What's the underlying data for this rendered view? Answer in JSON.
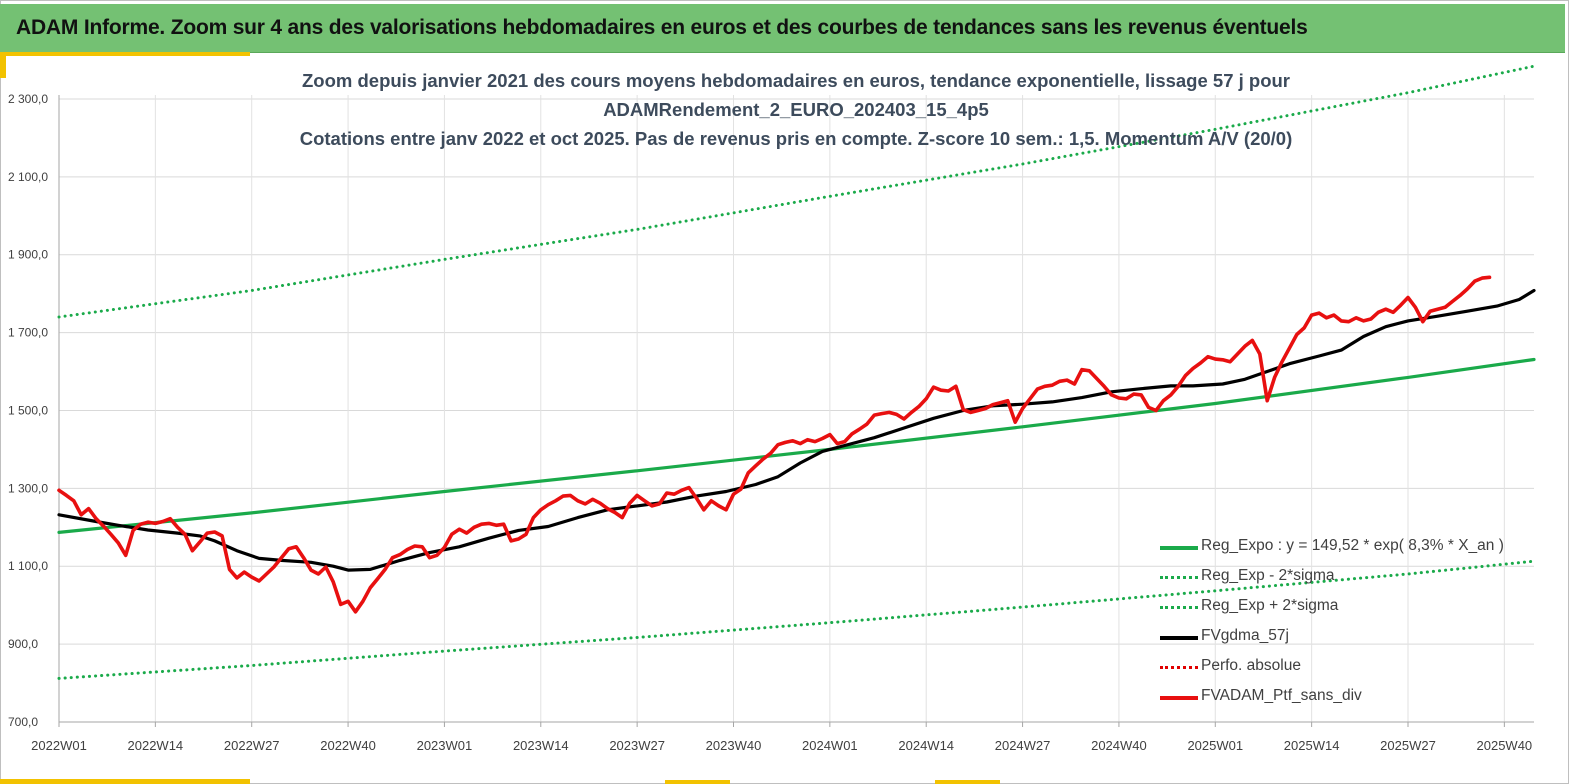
{
  "banner": {
    "title": "ADAM Informe. Zoom sur 4 ans des valorisations hebdomadaires en euros et des courbes de tendances sans les revenus éventuels"
  },
  "chart_data": {
    "type": "line",
    "title_lines": [
      "Zoom depuis janvier 2021 des cours moyens hebdomadaires  en euros, tendance exponentielle, lissage 57 j pour",
      "ADAMRendement_2_EURO_202403_15_4p5",
      "Cotations  entre janv 2022 et oct 2025. Pas de revenus pris en compte. Z-score 10 sem.: 1,5. Momentum A/V (20/0)"
    ],
    "ylim": [
      700,
      2400
    ],
    "yticks": [
      700,
      900,
      1100,
      1300,
      1500,
      1700,
      1900,
      2100,
      2300
    ],
    "ytick_labels": [
      "700,0",
      "900,0",
      "1 100,0",
      "1 300,0",
      "1 500,0",
      "1 700,0",
      "1 900,0",
      "2 100,0",
      "2 300,0"
    ],
    "x_count": 200,
    "xtick_labels": [
      "2022W01",
      "2022W14",
      "2022W27",
      "2022W40",
      "2023W01",
      "2023W14",
      "2023W27",
      "2023W40",
      "2024W01",
      "2024W14",
      "2024W27",
      "2024W40",
      "2025W01",
      "2025W14",
      "2025W27",
      "2025W40"
    ],
    "xtick_index": [
      0,
      13,
      26,
      39,
      52,
      65,
      78,
      91,
      104,
      117,
      130,
      143,
      156,
      169,
      182,
      195
    ],
    "series": [
      {
        "name": "Reg_Expo : y = 149,52 * exp( 8,3% *  X_an )",
        "color": "#1aaa4a",
        "style": "solid",
        "points": [
          [
            0,
            1187
          ],
          [
            26,
            1237
          ],
          [
            52,
            1292
          ],
          [
            78,
            1345
          ],
          [
            104,
            1400
          ],
          [
            130,
            1458
          ],
          [
            156,
            1518
          ],
          [
            182,
            1585
          ],
          [
            199,
            1631
          ]
        ]
      },
      {
        "name": "Reg_Exp - 2*sigma",
        "color": "#1aaa4a",
        "style": "dotted",
        "points": [
          [
            0,
            812
          ],
          [
            26,
            845
          ],
          [
            52,
            882
          ],
          [
            78,
            917
          ],
          [
            104,
            955
          ],
          [
            130,
            995
          ],
          [
            156,
            1037
          ],
          [
            182,
            1080
          ],
          [
            199,
            1113
          ]
        ]
      },
      {
        "name": "Reg_Exp + 2*sigma",
        "color": "#1aaa4a",
        "style": "dotted",
        "points": [
          [
            0,
            1740
          ],
          [
            26,
            1808
          ],
          [
            52,
            1888
          ],
          [
            78,
            1965
          ],
          [
            104,
            2050
          ],
          [
            130,
            2133
          ],
          [
            156,
            2222
          ],
          [
            182,
            2316
          ],
          [
            199,
            2384
          ]
        ]
      },
      {
        "name": "FVgdma_57j",
        "color": "#000000",
        "style": "solid",
        "points": [
          [
            0,
            1232
          ],
          [
            5,
            1215
          ],
          [
            8,
            1205
          ],
          [
            12,
            1193
          ],
          [
            16,
            1185
          ],
          [
            19,
            1178
          ],
          [
            21,
            1165
          ],
          [
            24,
            1140
          ],
          [
            27,
            1120
          ],
          [
            30,
            1115
          ],
          [
            34,
            1110
          ],
          [
            37,
            1100
          ],
          [
            39,
            1090
          ],
          [
            42,
            1092
          ],
          [
            46,
            1115
          ],
          [
            50,
            1135
          ],
          [
            54,
            1150
          ],
          [
            58,
            1172
          ],
          [
            62,
            1192
          ],
          [
            66,
            1202
          ],
          [
            70,
            1225
          ],
          [
            74,
            1245
          ],
          [
            78,
            1255
          ],
          [
            82,
            1265
          ],
          [
            86,
            1280
          ],
          [
            90,
            1292
          ],
          [
            94,
            1310
          ],
          [
            97,
            1330
          ],
          [
            100,
            1365
          ],
          [
            103,
            1395
          ],
          [
            106,
            1410
          ],
          [
            110,
            1430
          ],
          [
            114,
            1455
          ],
          [
            118,
            1480
          ],
          [
            122,
            1500
          ],
          [
            126,
            1512
          ],
          [
            130,
            1516
          ],
          [
            134,
            1522
          ],
          [
            138,
            1533
          ],
          [
            142,
            1548
          ],
          [
            146,
            1556
          ],
          [
            150,
            1563
          ],
          [
            153,
            1563
          ],
          [
            157,
            1568
          ],
          [
            160,
            1580
          ],
          [
            163,
            1600
          ],
          [
            166,
            1620
          ],
          [
            170,
            1640
          ],
          [
            173,
            1655
          ],
          [
            176,
            1690
          ],
          [
            179,
            1715
          ],
          [
            182,
            1730
          ],
          [
            186,
            1742
          ],
          [
            190,
            1755
          ],
          [
            194,
            1768
          ],
          [
            197,
            1785
          ],
          [
            199,
            1808
          ]
        ]
      },
      {
        "name": "Perfo. absolue",
        "color": "#e00000",
        "style": "dotted",
        "points": []
      },
      {
        "name": "FVADAM_Ptf_sans_div",
        "color": "#e81010",
        "style": "solid",
        "points": [
          [
            0,
            1295
          ],
          [
            1,
            1282
          ],
          [
            2,
            1268
          ],
          [
            3,
            1232
          ],
          [
            4,
            1248
          ],
          [
            5,
            1222
          ],
          [
            6,
            1203
          ],
          [
            7,
            1182
          ],
          [
            8,
            1160
          ],
          [
            9,
            1128
          ],
          [
            10,
            1192
          ],
          [
            11,
            1208
          ],
          [
            12,
            1213
          ],
          [
            13,
            1210
          ],
          [
            14,
            1215
          ],
          [
            15,
            1222
          ],
          [
            16,
            1200
          ],
          [
            17,
            1182
          ],
          [
            18,
            1140
          ],
          [
            19,
            1162
          ],
          [
            20,
            1185
          ],
          [
            21,
            1188
          ],
          [
            22,
            1178
          ],
          [
            23,
            1092
          ],
          [
            24,
            1070
          ],
          [
            25,
            1085
          ],
          [
            26,
            1072
          ],
          [
            27,
            1062
          ],
          [
            28,
            1080
          ],
          [
            29,
            1098
          ],
          [
            30,
            1122
          ],
          [
            31,
            1145
          ],
          [
            32,
            1150
          ],
          [
            33,
            1122
          ],
          [
            34,
            1090
          ],
          [
            35,
            1080
          ],
          [
            36,
            1098
          ],
          [
            37,
            1060
          ],
          [
            38,
            1002
          ],
          [
            39,
            1010
          ],
          [
            40,
            983
          ],
          [
            41,
            1010
          ],
          [
            42,
            1045
          ],
          [
            43,
            1068
          ],
          [
            44,
            1092
          ],
          [
            45,
            1122
          ],
          [
            46,
            1130
          ],
          [
            47,
            1143
          ],
          [
            48,
            1152
          ],
          [
            49,
            1150
          ],
          [
            50,
            1122
          ],
          [
            51,
            1128
          ],
          [
            52,
            1148
          ],
          [
            53,
            1182
          ],
          [
            54,
            1195
          ],
          [
            55,
            1185
          ],
          [
            56,
            1200
          ],
          [
            57,
            1208
          ],
          [
            58,
            1210
          ],
          [
            59,
            1205
          ],
          [
            60,
            1208
          ],
          [
            61,
            1165
          ],
          [
            62,
            1170
          ],
          [
            63,
            1182
          ],
          [
            64,
            1225
          ],
          [
            65,
            1245
          ],
          [
            66,
            1258
          ],
          [
            67,
            1268
          ],
          [
            68,
            1280
          ],
          [
            69,
            1282
          ],
          [
            70,
            1268
          ],
          [
            71,
            1260
          ],
          [
            72,
            1272
          ],
          [
            73,
            1262
          ],
          [
            74,
            1248
          ],
          [
            75,
            1238
          ],
          [
            76,
            1225
          ],
          [
            77,
            1262
          ],
          [
            78,
            1282
          ],
          [
            79,
            1268
          ],
          [
            80,
            1255
          ],
          [
            81,
            1260
          ],
          [
            82,
            1288
          ],
          [
            83,
            1285
          ],
          [
            84,
            1295
          ],
          [
            85,
            1302
          ],
          [
            86,
            1275
          ],
          [
            87,
            1245
          ],
          [
            88,
            1268
          ],
          [
            89,
            1255
          ],
          [
            90,
            1245
          ],
          [
            91,
            1285
          ],
          [
            92,
            1298
          ],
          [
            93,
            1340
          ],
          [
            94,
            1358
          ],
          [
            95,
            1375
          ],
          [
            96,
            1390
          ],
          [
            97,
            1412
          ],
          [
            98,
            1418
          ],
          [
            99,
            1422
          ],
          [
            100,
            1415
          ],
          [
            101,
            1425
          ],
          [
            102,
            1420
          ],
          [
            103,
            1428
          ],
          [
            104,
            1438
          ],
          [
            105,
            1415
          ],
          [
            106,
            1420
          ],
          [
            107,
            1440
          ],
          [
            108,
            1452
          ],
          [
            109,
            1465
          ],
          [
            110,
            1488
          ],
          [
            111,
            1492
          ],
          [
            112,
            1495
          ],
          [
            113,
            1490
          ],
          [
            114,
            1478
          ],
          [
            115,
            1495
          ],
          [
            116,
            1510
          ],
          [
            117,
            1530
          ],
          [
            118,
            1560
          ],
          [
            119,
            1552
          ],
          [
            120,
            1550
          ],
          [
            121,
            1562
          ],
          [
            122,
            1502
          ],
          [
            123,
            1495
          ],
          [
            124,
            1500
          ],
          [
            125,
            1505
          ],
          [
            126,
            1515
          ],
          [
            127,
            1520
          ],
          [
            128,
            1525
          ],
          [
            129,
            1470
          ],
          [
            130,
            1505
          ],
          [
            131,
            1530
          ],
          [
            132,
            1555
          ],
          [
            133,
            1562
          ],
          [
            134,
            1565
          ],
          [
            135,
            1575
          ],
          [
            136,
            1578
          ],
          [
            137,
            1568
          ],
          [
            138,
            1605
          ],
          [
            139,
            1602
          ],
          [
            140,
            1582
          ],
          [
            141,
            1562
          ],
          [
            142,
            1540
          ],
          [
            143,
            1532
          ],
          [
            144,
            1530
          ],
          [
            145,
            1542
          ],
          [
            146,
            1540
          ],
          [
            147,
            1508
          ],
          [
            148,
            1500
          ],
          [
            149,
            1525
          ],
          [
            150,
            1540
          ],
          [
            151,
            1562
          ],
          [
            152,
            1590
          ],
          [
            153,
            1608
          ],
          [
            154,
            1622
          ],
          [
            155,
            1638
          ],
          [
            156,
            1632
          ],
          [
            157,
            1630
          ],
          [
            158,
            1625
          ],
          [
            159,
            1645
          ],
          [
            160,
            1665
          ],
          [
            161,
            1680
          ],
          [
            162,
            1645
          ],
          [
            163,
            1525
          ],
          [
            164,
            1585
          ],
          [
            165,
            1625
          ],
          [
            166,
            1660
          ],
          [
            167,
            1695
          ],
          [
            168,
            1712
          ],
          [
            169,
            1745
          ],
          [
            170,
            1750
          ],
          [
            171,
            1738
          ],
          [
            172,
            1745
          ],
          [
            173,
            1730
          ],
          [
            174,
            1728
          ],
          [
            175,
            1738
          ],
          [
            176,
            1730
          ],
          [
            177,
            1735
          ],
          [
            178,
            1752
          ],
          [
            179,
            1760
          ],
          [
            180,
            1752
          ],
          [
            181,
            1770
          ],
          [
            182,
            1790
          ],
          [
            183,
            1765
          ],
          [
            184,
            1728
          ],
          [
            185,
            1755
          ],
          [
            186,
            1760
          ],
          [
            187,
            1765
          ],
          [
            188,
            1780
          ],
          [
            189,
            1795
          ],
          [
            190,
            1812
          ],
          [
            191,
            1832
          ],
          [
            192,
            1840
          ],
          [
            193,
            1842
          ]
        ]
      }
    ]
  }
}
